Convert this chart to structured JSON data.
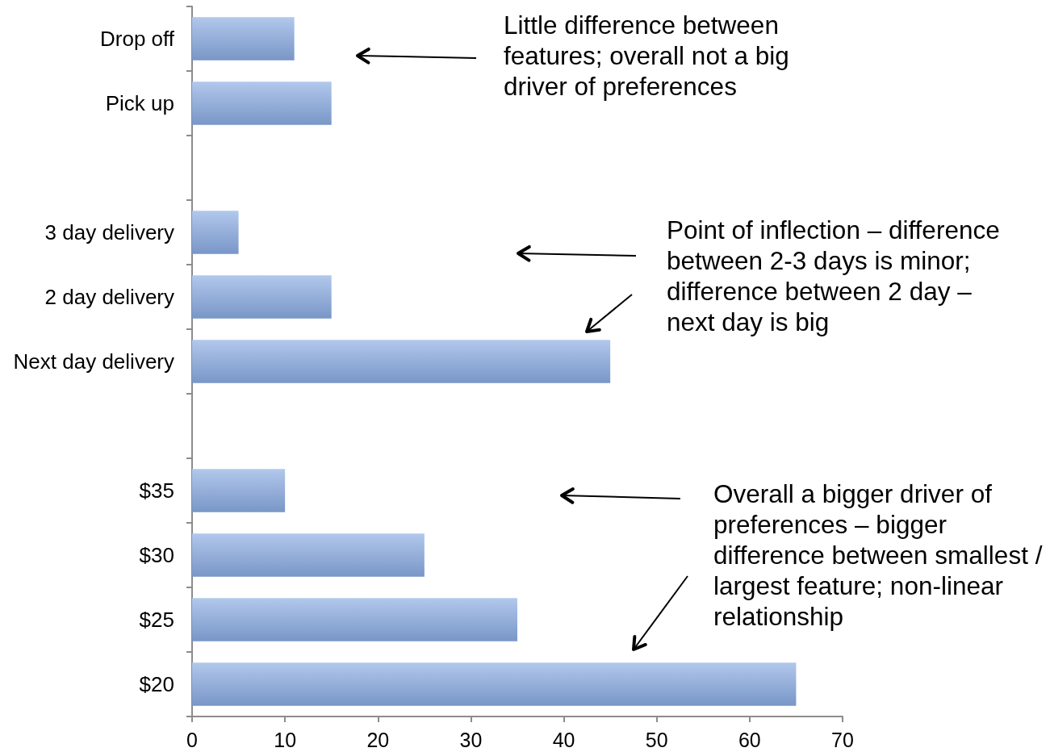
{
  "chart_data": {
    "type": "bar",
    "orientation": "horizontal",
    "categories": [
      "Drop off",
      "Pick up",
      null,
      "3 day delivery",
      "2 day delivery",
      "Next day delivery",
      null,
      "$35",
      "$30",
      "$25",
      "$20"
    ],
    "values": [
      11,
      15,
      null,
      5,
      15,
      45,
      null,
      10,
      25,
      35,
      65
    ],
    "color": "#88aae2",
    "xlim": [
      0,
      70
    ],
    "xticks": [
      0,
      10,
      20,
      30,
      40,
      50,
      60,
      70
    ],
    "grid": false,
    "annotations": [
      "Little difference between features; overall not a big driver of preferences",
      "Point of inflection – difference between 2-3 days is minor; difference between 2 day – next day is big",
      "Overall a bigger driver of preferences – bigger difference between smallest / largest feature; non-linear relationship"
    ]
  }
}
